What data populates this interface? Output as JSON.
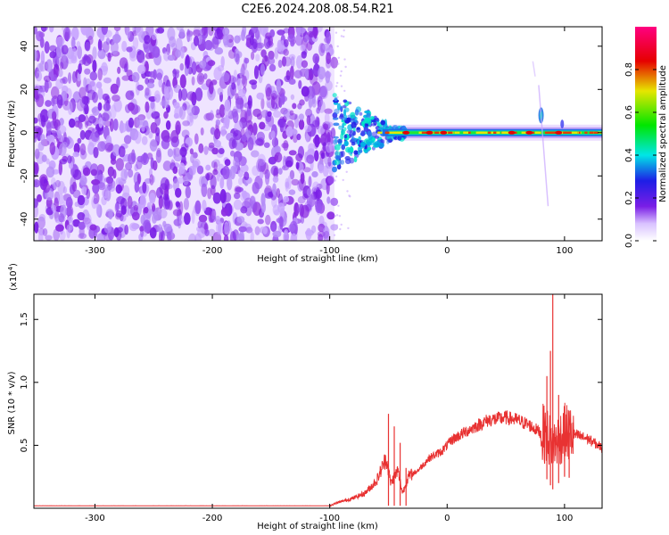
{
  "figure_title": "C2E6.2024.208.08.54.R21",
  "colors": {
    "axis": "#000000",
    "snr_line": "#e83232",
    "noise": "#7a1ee6"
  },
  "chart_data": [
    {
      "type": "heatmap",
      "title": "C2E6.2024.208.08.54.R21",
      "xlabel": "Height of straight line (km)",
      "ylabel": "Frequency (Hz)",
      "xlim": [
        -352,
        132
      ],
      "ylim": [
        -50,
        49
      ],
      "xticks": [
        -300,
        -200,
        -100,
        0,
        100
      ],
      "yticks": [
        -40,
        -20,
        0,
        20,
        40
      ],
      "colorbar": {
        "label": "Normalized spectral amplitude",
        "range": [
          0,
          1
        ],
        "ticks": [
          "0.0",
          "0.2",
          "0.4",
          "0.6",
          "0.8"
        ],
        "ramp": [
          "#ffffff",
          "#7a1ee6",
          "#1e1ee6",
          "#00e6e6",
          "#00e600",
          "#e6e600",
          "#e60000",
          "#ff0080"
        ]
      },
      "regions": [
        {
          "kind": "noise",
          "x_range": [
            -352,
            -96
          ],
          "amplitude": 0.18
        },
        {
          "kind": "signal",
          "x_range": [
            -96,
            132
          ],
          "frequency_hz": 0,
          "peaks_x": [
            -35,
            -15,
            -3,
            55,
            70,
            95
          ]
        }
      ]
    },
    {
      "type": "line",
      "xlabel": "Height of straight line (km)",
      "ylabel": "SNR (10 * v/v)",
      "y_multiplier": "(x10",
      "y_multiplier_exp": "4",
      "y_multiplier_close": ")",
      "xlim": [
        -352,
        132
      ],
      "ylim": [
        0,
        1.7
      ],
      "xticks": [
        -300,
        -200,
        -100,
        0,
        100
      ],
      "yticks": [
        "0.5",
        "1.0",
        "1.5"
      ],
      "series": [
        {
          "color": "#e83232",
          "envelope": [
            [
              -352,
              0.02
            ],
            [
              -100,
              0.02
            ],
            [
              -95,
              0.04
            ],
            [
              -80,
              0.08
            ],
            [
              -70,
              0.12
            ],
            [
              -60,
              0.22
            ],
            [
              -52,
              0.4
            ],
            [
              -48,
              0.2
            ],
            [
              -42,
              0.3
            ],
            [
              -38,
              0.12
            ],
            [
              -33,
              0.25
            ],
            [
              -25,
              0.3
            ],
            [
              -15,
              0.4
            ],
            [
              -5,
              0.45
            ],
            [
              5,
              0.55
            ],
            [
              20,
              0.63
            ],
            [
              35,
              0.7
            ],
            [
              50,
              0.72
            ],
            [
              60,
              0.7
            ],
            [
              70,
              0.66
            ],
            [
              80,
              0.6
            ],
            [
              85,
              0.58
            ],
            [
              90,
              0.5
            ],
            [
              95,
              0.55
            ],
            [
              100,
              0.6
            ],
            [
              110,
              0.58
            ],
            [
              120,
              0.55
            ],
            [
              132,
              0.48
            ]
          ],
          "spikes": [
            [
              -50,
              0.75
            ],
            [
              -45,
              0.65
            ],
            [
              -40,
              0.52
            ],
            [
              -35,
              0.32
            ],
            [
              85,
              1.05
            ],
            [
              88,
              1.25
            ],
            [
              90,
              1.72
            ],
            [
              95,
              0.9
            ],
            [
              100,
              0.75
            ],
            [
              104,
              0.6
            ]
          ]
        }
      ]
    }
  ]
}
